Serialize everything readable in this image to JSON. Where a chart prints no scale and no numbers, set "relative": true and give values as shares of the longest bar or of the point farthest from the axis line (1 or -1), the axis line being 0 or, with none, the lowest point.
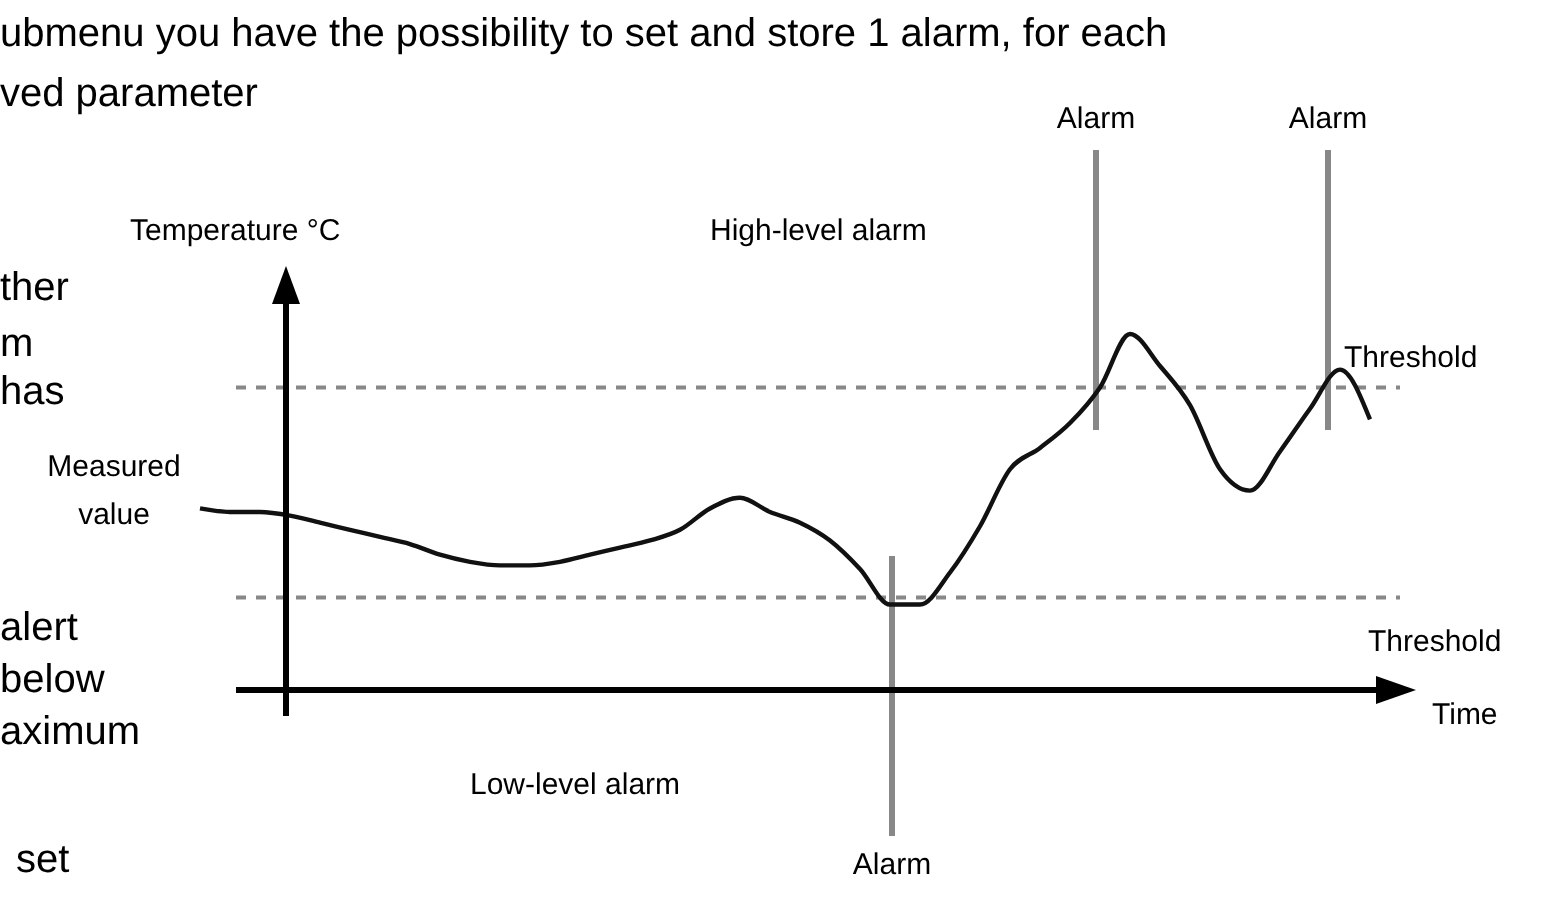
{
  "chart_data": {
    "type": "line",
    "relative": true,
    "xlabel": "Time",
    "ylabel": "Temperature °C",
    "categories": [
      null,
      null,
      null,
      null,
      null,
      null,
      null,
      null,
      null,
      null,
      null,
      null,
      null,
      null,
      null,
      null,
      null,
      null,
      null,
      null,
      null,
      null,
      null,
      null,
      null,
      null,
      null,
      null,
      null,
      null,
      null,
      null,
      null,
      null,
      null,
      null,
      null,
      null,
      null,
      null
    ],
    "series": [
      {
        "color": "#111111",
        "values": [
          0.51,
          0.5,
          0.5,
          0.49,
          0.47,
          0.45,
          0.43,
          0.41,
          0.38,
          0.36,
          0.35,
          0.35,
          0.36,
          0.38,
          0.4,
          0.42,
          0.45,
          0.51,
          0.54,
          0.5,
          0.47,
          0.42,
          0.34,
          0.24,
          0.24,
          0.33,
          0.46,
          0.62,
          0.68,
          0.75,
          0.85,
          1,
          0.91,
          0.8,
          0.62,
          0.56,
          0.67,
          0.79,
          0.9,
          0.76
        ]
      }
    ],
    "marker": "none",
    "line_style": "solid",
    "grid": false,
    "ref_lines": [
      {
        "axis": "y",
        "value": 0.85,
        "label": "Threshold",
        "color": "#888888",
        "line_style": "dashed"
      },
      {
        "axis": "y",
        "value": 0.26,
        "label": "Threshold",
        "color": "#888888",
        "line_style": "dashed"
      }
    ],
    "annotations": [
      "ubmenu you have the possibility to set and store 1 alarm, for each",
      "ved parameter",
      "ther",
      "m",
      "has",
      "alert",
      "below",
      "aximum",
      "set",
      "Measured value",
      "High-level alarm",
      "Low-level alarm",
      "Alarm",
      "Alarm",
      "Alarm"
    ]
  }
}
